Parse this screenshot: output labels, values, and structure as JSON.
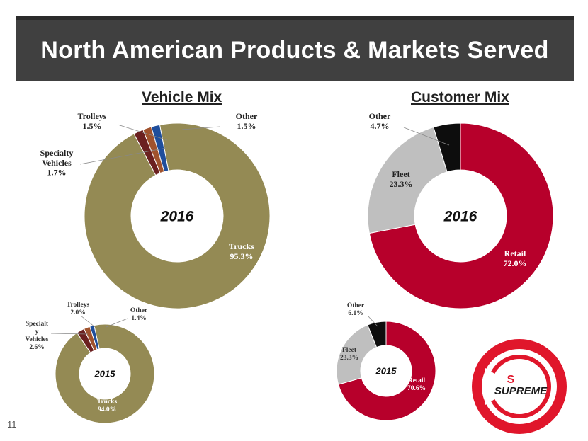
{
  "slide": {
    "title": "North American Products & Markets Served",
    "page_number": "11",
    "logo_text": "SUPREME",
    "vehicle_mix_title": "Vehicle Mix",
    "customer_mix_title": "Customer Mix"
  },
  "colors": {
    "trucks": "#948A54",
    "specialty": "#6B2020",
    "trolleys": "#A0522D",
    "other_vehicle": "#1F4E9C",
    "retail": "#B7002B",
    "fleet": "#BFBFBF",
    "other_customer": "#0D0D0D",
    "logo_red": "#E0162B"
  },
  "chart_data": [
    {
      "type": "pie",
      "title": "Vehicle Mix",
      "center_label": "2016",
      "labels": [
        "Trucks",
        "Specialty Vehicles",
        "Trolleys",
        "Other"
      ],
      "values": [
        95.3,
        1.7,
        1.5,
        1.5
      ],
      "value_labels": [
        "95.3%",
        "1.7%",
        "1.5%",
        "1.5%"
      ],
      "label_lines": [
        [
          "Trucks"
        ],
        [
          "Specialty",
          "Vehicles"
        ],
        [
          "Trolleys"
        ],
        [
          "Other"
        ]
      ],
      "color_keys": [
        "trucks",
        "specialty",
        "trolleys",
        "other_vehicle"
      ]
    },
    {
      "type": "pie",
      "title": "Vehicle Mix",
      "center_label": "2015",
      "labels": [
        "Trucks",
        "Specialty Vehicles",
        "Trolleys",
        "Other"
      ],
      "values": [
        94.0,
        2.6,
        2.0,
        1.4
      ],
      "value_labels": [
        "94.0%",
        "2.6%",
        "2.0%",
        "1.4%"
      ],
      "label_lines": [
        [
          "Trucks"
        ],
        [
          "Specialt",
          "y",
          "Vehicles"
        ],
        [
          "Trolleys"
        ],
        [
          "Other"
        ]
      ],
      "color_keys": [
        "trucks",
        "specialty",
        "trolleys",
        "other_vehicle"
      ]
    },
    {
      "type": "pie",
      "title": "Customer Mix",
      "center_label": "2016",
      "labels": [
        "Retail",
        "Fleet",
        "Other"
      ],
      "values": [
        72.0,
        23.3,
        4.7
      ],
      "value_labels": [
        "72.0%",
        "23.3%",
        "4.7%"
      ],
      "label_lines": [
        [
          "Retail"
        ],
        [
          "Fleet"
        ],
        [
          "Other"
        ]
      ],
      "color_keys": [
        "retail",
        "fleet",
        "other_customer"
      ]
    },
    {
      "type": "pie",
      "title": "Customer Mix",
      "center_label": "2015",
      "labels": [
        "Retail",
        "Fleet",
        "Other"
      ],
      "values": [
        70.6,
        23.3,
        6.1
      ],
      "value_labels": [
        "70.6%",
        "23.3%",
        "6.1%"
      ],
      "label_lines": [
        [
          "Retail"
        ],
        [
          "Fleet"
        ],
        [
          "Other"
        ]
      ],
      "color_keys": [
        "retail",
        "fleet",
        "other_customer"
      ]
    }
  ]
}
